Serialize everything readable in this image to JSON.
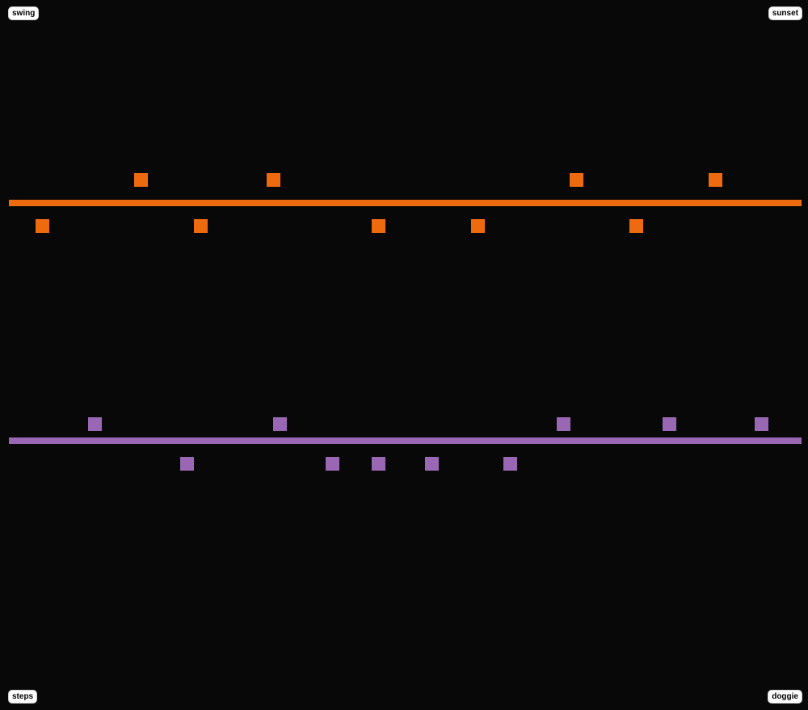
{
  "corners": {
    "top_left": "swing",
    "top_right": "sunset",
    "bottom_left": "steps",
    "bottom_right": "doggie"
  },
  "lanes": [
    {
      "color": "#ee6a0f",
      "above_blocks": 4,
      "below_blocks": 5
    },
    {
      "color": "#9a67b5",
      "above_blocks": 5,
      "below_blocks": 5
    }
  ]
}
